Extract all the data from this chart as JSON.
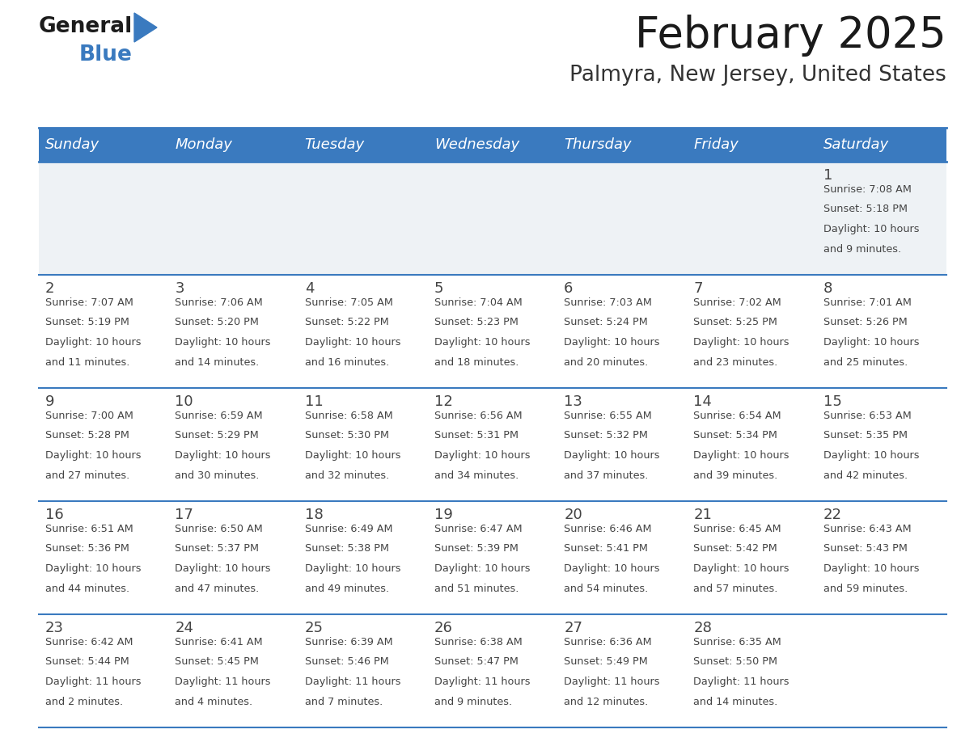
{
  "title": "February 2025",
  "subtitle": "Palmyra, New Jersey, United States",
  "header_color": "#3a7abf",
  "header_text_color": "#ffffff",
  "day_names": [
    "Sunday",
    "Monday",
    "Tuesday",
    "Wednesday",
    "Thursday",
    "Friday",
    "Saturday"
  ],
  "bg_color": "#ffffff",
  "row0_color": "#eef2f5",
  "border_color": "#3a7abf",
  "text_color": "#444444",
  "title_color": "#1a1a1a",
  "subtitle_color": "#333333",
  "calendar": [
    [
      null,
      null,
      null,
      null,
      null,
      null,
      {
        "day": "1",
        "sunrise": "7:08 AM",
        "sunset": "5:18 PM",
        "daylight": "10 hours",
        "daylight2": "and 9 minutes."
      }
    ],
    [
      {
        "day": "2",
        "sunrise": "7:07 AM",
        "sunset": "5:19 PM",
        "daylight": "10 hours",
        "daylight2": "and 11 minutes."
      },
      {
        "day": "3",
        "sunrise": "7:06 AM",
        "sunset": "5:20 PM",
        "daylight": "10 hours",
        "daylight2": "and 14 minutes."
      },
      {
        "day": "4",
        "sunrise": "7:05 AM",
        "sunset": "5:22 PM",
        "daylight": "10 hours",
        "daylight2": "and 16 minutes."
      },
      {
        "day": "5",
        "sunrise": "7:04 AM",
        "sunset": "5:23 PM",
        "daylight": "10 hours",
        "daylight2": "and 18 minutes."
      },
      {
        "day": "6",
        "sunrise": "7:03 AM",
        "sunset": "5:24 PM",
        "daylight": "10 hours",
        "daylight2": "and 20 minutes."
      },
      {
        "day": "7",
        "sunrise": "7:02 AM",
        "sunset": "5:25 PM",
        "daylight": "10 hours",
        "daylight2": "and 23 minutes."
      },
      {
        "day": "8",
        "sunrise": "7:01 AM",
        "sunset": "5:26 PM",
        "daylight": "10 hours",
        "daylight2": "and 25 minutes."
      }
    ],
    [
      {
        "day": "9",
        "sunrise": "7:00 AM",
        "sunset": "5:28 PM",
        "daylight": "10 hours",
        "daylight2": "and 27 minutes."
      },
      {
        "day": "10",
        "sunrise": "6:59 AM",
        "sunset": "5:29 PM",
        "daylight": "10 hours",
        "daylight2": "and 30 minutes."
      },
      {
        "day": "11",
        "sunrise": "6:58 AM",
        "sunset": "5:30 PM",
        "daylight": "10 hours",
        "daylight2": "and 32 minutes."
      },
      {
        "day": "12",
        "sunrise": "6:56 AM",
        "sunset": "5:31 PM",
        "daylight": "10 hours",
        "daylight2": "and 34 minutes."
      },
      {
        "day": "13",
        "sunrise": "6:55 AM",
        "sunset": "5:32 PM",
        "daylight": "10 hours",
        "daylight2": "and 37 minutes."
      },
      {
        "day": "14",
        "sunrise": "6:54 AM",
        "sunset": "5:34 PM",
        "daylight": "10 hours",
        "daylight2": "and 39 minutes."
      },
      {
        "day": "15",
        "sunrise": "6:53 AM",
        "sunset": "5:35 PM",
        "daylight": "10 hours",
        "daylight2": "and 42 minutes."
      }
    ],
    [
      {
        "day": "16",
        "sunrise": "6:51 AM",
        "sunset": "5:36 PM",
        "daylight": "10 hours",
        "daylight2": "and 44 minutes."
      },
      {
        "day": "17",
        "sunrise": "6:50 AM",
        "sunset": "5:37 PM",
        "daylight": "10 hours",
        "daylight2": "and 47 minutes."
      },
      {
        "day": "18",
        "sunrise": "6:49 AM",
        "sunset": "5:38 PM",
        "daylight": "10 hours",
        "daylight2": "and 49 minutes."
      },
      {
        "day": "19",
        "sunrise": "6:47 AM",
        "sunset": "5:39 PM",
        "daylight": "10 hours",
        "daylight2": "and 51 minutes."
      },
      {
        "day": "20",
        "sunrise": "6:46 AM",
        "sunset": "5:41 PM",
        "daylight": "10 hours",
        "daylight2": "and 54 minutes."
      },
      {
        "day": "21",
        "sunrise": "6:45 AM",
        "sunset": "5:42 PM",
        "daylight": "10 hours",
        "daylight2": "and 57 minutes."
      },
      {
        "day": "22",
        "sunrise": "6:43 AM",
        "sunset": "5:43 PM",
        "daylight": "10 hours",
        "daylight2": "and 59 minutes."
      }
    ],
    [
      {
        "day": "23",
        "sunrise": "6:42 AM",
        "sunset": "5:44 PM",
        "daylight": "11 hours",
        "daylight2": "and 2 minutes."
      },
      {
        "day": "24",
        "sunrise": "6:41 AM",
        "sunset": "5:45 PM",
        "daylight": "11 hours",
        "daylight2": "and 4 minutes."
      },
      {
        "day": "25",
        "sunrise": "6:39 AM",
        "sunset": "5:46 PM",
        "daylight": "11 hours",
        "daylight2": "and 7 minutes."
      },
      {
        "day": "26",
        "sunrise": "6:38 AM",
        "sunset": "5:47 PM",
        "daylight": "11 hours",
        "daylight2": "and 9 minutes."
      },
      {
        "day": "27",
        "sunrise": "6:36 AM",
        "sunset": "5:49 PM",
        "daylight": "11 hours",
        "daylight2": "and 12 minutes."
      },
      {
        "day": "28",
        "sunrise": "6:35 AM",
        "sunset": "5:50 PM",
        "daylight": "11 hours",
        "daylight2": "and 14 minutes."
      },
      null
    ]
  ]
}
